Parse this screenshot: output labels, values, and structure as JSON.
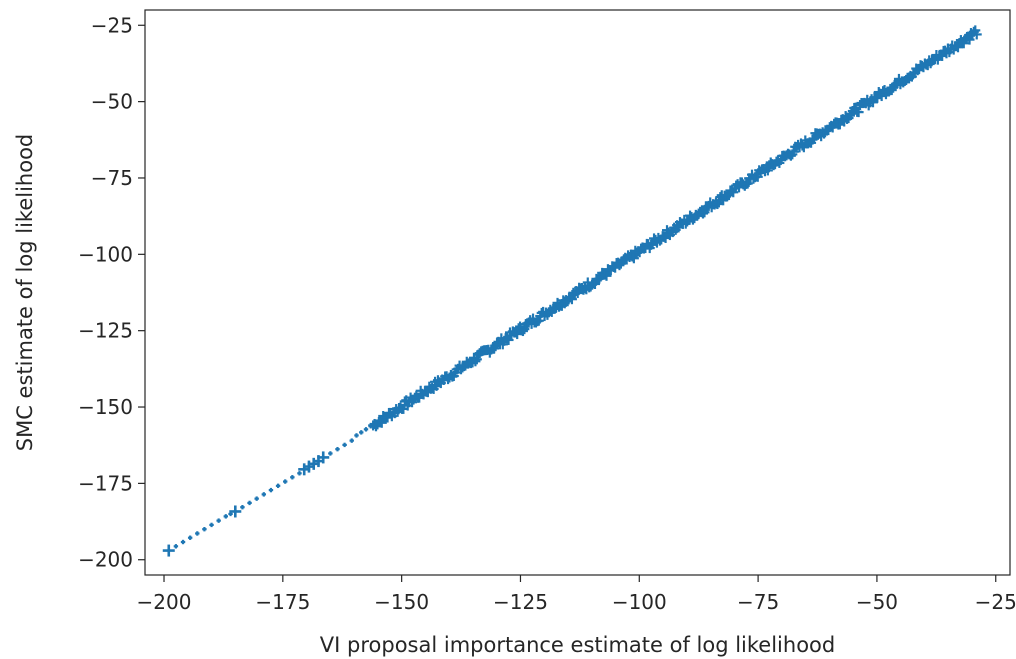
{
  "chart_data": {
    "type": "scatter",
    "title": "",
    "xlabel": "VI proposal importance estimate of log likelihood",
    "ylabel": "SMC estimate of log likelihood",
    "xlim": [
      -204,
      -22
    ],
    "ylim": [
      -205,
      -20
    ],
    "xticks": [
      -200,
      -175,
      -150,
      -125,
      -100,
      -75,
      -50,
      -25
    ],
    "yticks": [
      -200,
      -175,
      -150,
      -125,
      -100,
      -75,
      -50,
      -25
    ],
    "tick_labels_x": [
      "−200",
      "−175",
      "−150",
      "−125",
      "−100",
      "−75",
      "−50",
      "−25"
    ],
    "tick_labels_y": [
      "−200",
      "−175",
      "−150",
      "−125",
      "−100",
      "−75",
      "−50",
      "−25"
    ],
    "grid": false,
    "marker": "+",
    "color": "#1f77b4",
    "series": [
      {
        "x": [
          -199.0,
          -197.5,
          -196.0,
          -194.5,
          -193.0,
          -191.5,
          -190.0,
          -188.5,
          -187.0,
          -186.0,
          -185.0,
          -183.5,
          -182.0,
          -180.5,
          -179.0,
          -177.5,
          -176.0,
          -174.5,
          -173.0,
          -171.5,
          -170.5,
          -169.5,
          -168.5,
          -167.5,
          -166.5,
          -165.0,
          -163.5,
          -162.0,
          -160.5,
          -159.5,
          -158.5,
          -157.5,
          -156.5,
          -155.5,
          -154.5
        ],
        "y": [
          -197.0,
          -195.6,
          -194.2,
          -192.8,
          -191.4,
          -190.0,
          -188.6,
          -187.2,
          -185.8,
          -185.0,
          -184.2,
          -182.8,
          -181.4,
          -180.0,
          -178.6,
          -177.2,
          -175.8,
          -174.4,
          -173.0,
          -171.7,
          -170.4,
          -169.5,
          -168.6,
          -167.7,
          -166.5,
          -165.2,
          -163.8,
          -162.4,
          -161.0,
          -159.3,
          -158.3,
          -157.3,
          -156.3,
          -155.3,
          -154.3
        ]
      }
    ],
    "dense_band": {
      "x_start": -156,
      "x_end": -29,
      "y_start": -156,
      "y_end": -27,
      "slope_note": "",
      "spread": 1.2
    }
  }
}
